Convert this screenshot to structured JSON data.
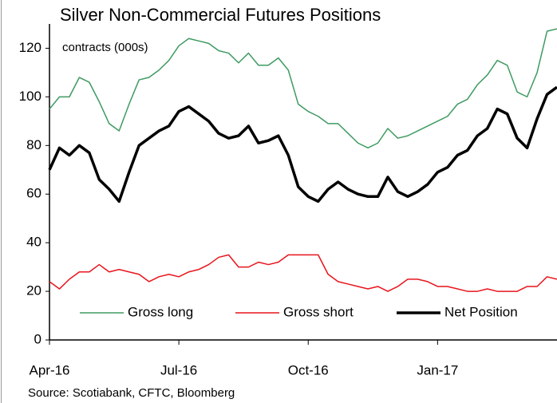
{
  "chart_data": {
    "type": "line",
    "title": "Silver Non-Commercial  Futures Positions",
    "subtitle": "contracts (000s)",
    "source": "Source: Scotiabank, CFTC, Bloomberg",
    "categories": [
      "Apr-16",
      null,
      null,
      null,
      null,
      null,
      null,
      null,
      null,
      null,
      null,
      null,
      null,
      "Jul-16",
      null,
      null,
      null,
      null,
      null,
      null,
      null,
      null,
      null,
      null,
      null,
      null,
      "Oct-16",
      null,
      null,
      null,
      null,
      null,
      null,
      null,
      null,
      null,
      null,
      null,
      null,
      "Jan-17",
      null,
      null,
      null,
      null,
      null,
      null,
      null,
      null,
      null,
      null,
      null,
      null
    ],
    "series": [
      {
        "name": "Gross long",
        "color": "#3f9a62",
        "width": 1.5,
        "values": [
          95,
          100,
          100,
          108,
          106,
          98,
          89,
          86,
          97,
          107,
          108,
          111,
          115,
          121,
          124,
          123,
          122,
          119,
          118,
          114,
          118,
          113,
          113,
          116,
          111,
          97,
          94,
          92,
          89,
          89,
          85,
          81,
          79,
          81,
          87,
          83,
          84,
          86,
          88,
          90,
          92,
          97,
          99,
          105,
          109,
          115,
          113,
          102,
          100,
          110,
          127,
          128
        ]
      },
      {
        "name": "Gross short",
        "color": "#e8141c",
        "width": 1.5,
        "values": [
          24,
          21,
          25,
          28,
          28,
          31,
          28,
          29,
          28,
          27,
          24,
          26,
          27,
          26,
          28,
          29,
          31,
          34,
          35,
          30,
          30,
          32,
          31,
          32,
          35,
          35,
          35,
          35,
          27,
          24,
          23,
          22,
          21,
          22,
          20,
          22,
          25,
          25,
          24,
          22,
          22,
          21,
          20,
          20,
          21,
          20,
          20,
          20,
          22,
          22,
          26,
          25
        ]
      },
      {
        "name": "Net Position",
        "color": "#000000",
        "width": 3.5,
        "values": [
          70,
          79,
          76,
          80,
          77,
          66,
          62,
          57,
          69,
          80,
          83,
          86,
          88,
          94,
          96,
          93,
          90,
          85,
          83,
          84,
          88,
          81,
          82,
          84,
          76,
          63,
          59,
          57,
          62,
          65,
          62,
          60,
          59,
          59,
          67,
          61,
          59,
          61,
          64,
          69,
          71,
          76,
          78,
          84,
          87,
          95,
          93,
          83,
          79,
          91,
          101,
          104
        ]
      }
    ],
    "ylim": [
      0,
      130
    ],
    "yticks": [
      0,
      20,
      40,
      60,
      80,
      100,
      120
    ],
    "legend": "bottom",
    "grid": false
  }
}
